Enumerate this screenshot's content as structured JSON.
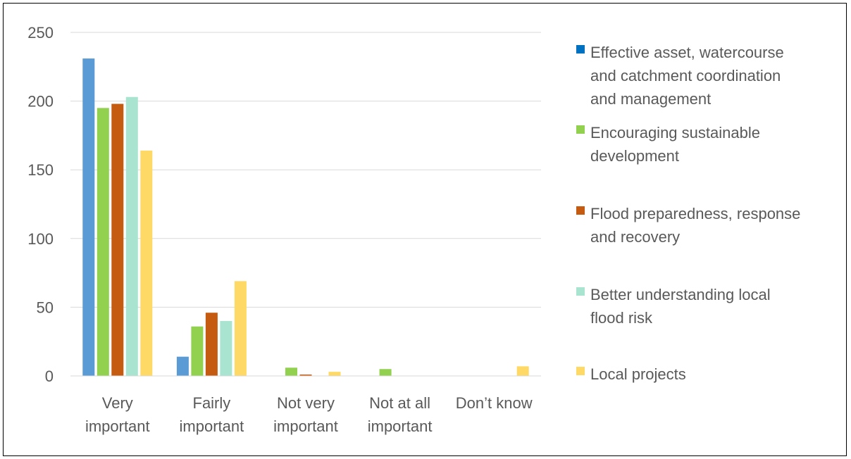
{
  "chart_data": {
    "type": "bar",
    "title": "",
    "xlabel": "",
    "ylabel": "",
    "ylim": [
      0,
      250
    ],
    "yticks": [
      0,
      50,
      100,
      150,
      200,
      250
    ],
    "grid": true,
    "legend_position": "right",
    "categories": [
      [
        "Very",
        "important"
      ],
      [
        "Fairly",
        "important"
      ],
      [
        "Not very",
        "important"
      ],
      [
        "Not at all",
        "important"
      ],
      [
        "Don’t know"
      ]
    ],
    "series": [
      {
        "name": "Effective asset, watercourse and catchment coordination and management",
        "legend_lines": [
          "Effective asset, watercourse",
          "and catchment coordination",
          "and management"
        ],
        "color": "#5B9BD5",
        "legend_color": "#0070C0",
        "values": [
          231,
          14,
          0,
          0,
          0
        ]
      },
      {
        "name": "Encouraging sustainable development",
        "legend_lines": [
          "Encouraging sustainable",
          "development"
        ],
        "color": "#92D050",
        "legend_color": "#92D050",
        "values": [
          195,
          36,
          6,
          5,
          0
        ]
      },
      {
        "name": "Flood preparedness, response and recovery",
        "legend_lines": [
          "Flood preparedness, response",
          "and recovery"
        ],
        "color": "#C55A11",
        "legend_color": "#C55A11",
        "values": [
          198,
          46,
          1,
          0,
          0
        ]
      },
      {
        "name": "Better understanding local flood risk",
        "legend_lines": [
          "Better understanding local",
          "flood risk"
        ],
        "color": "#A9E4D0",
        "legend_color": "#A9E4D0",
        "values": [
          203,
          40,
          0,
          0,
          0
        ]
      },
      {
        "name": "Local projects",
        "legend_lines": [
          "Local projects"
        ],
        "color": "#FFD966",
        "legend_color": "#FFD966",
        "values": [
          164,
          69,
          3,
          0,
          7
        ]
      }
    ]
  }
}
